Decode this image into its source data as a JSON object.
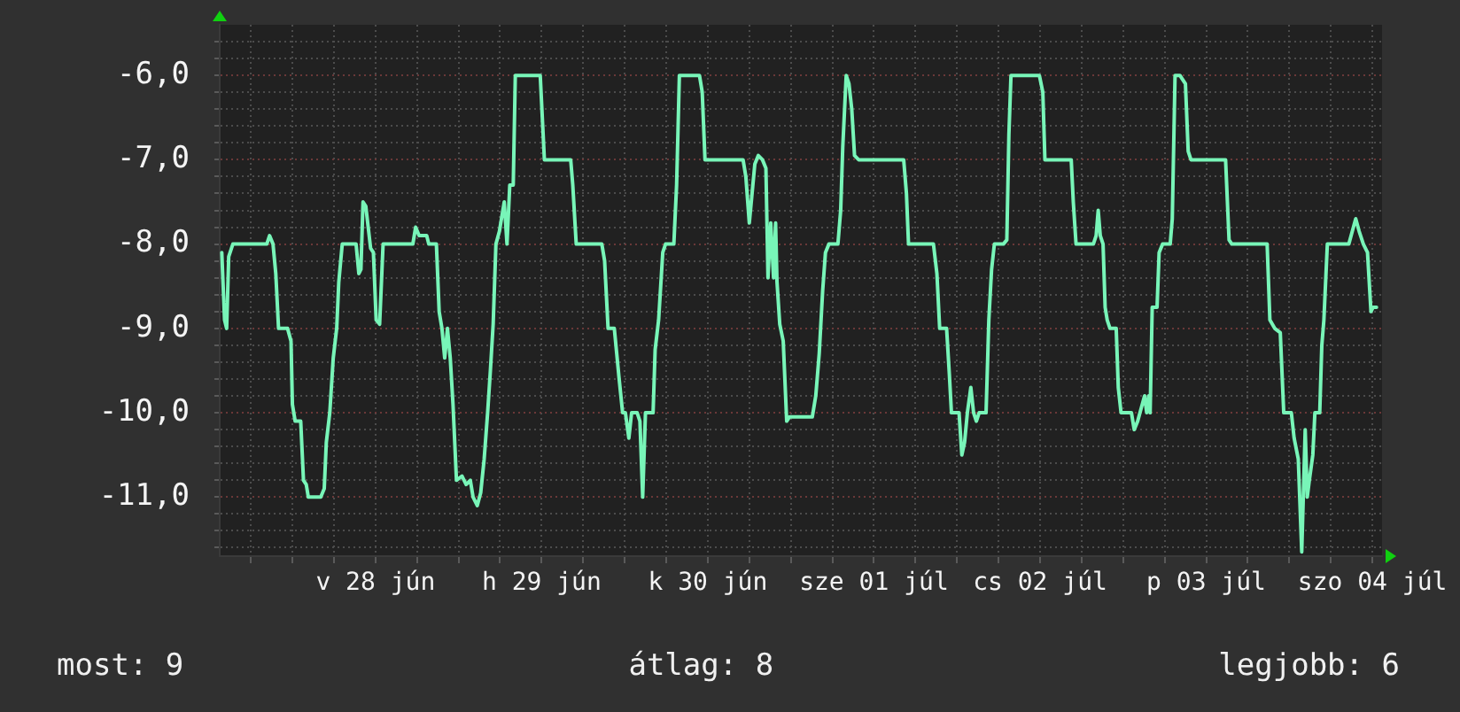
{
  "chart_data": {
    "type": "line",
    "color": "#78f5b8",
    "x": [
      "--06-27T13:48",
      "--06-27T14:12",
      "--06-27T14:30",
      "--06-27T14:48",
      "--06-27T15:24",
      "--06-27T20:18",
      "--06-27T20:42",
      "--06-27T21:12",
      "--06-27T21:36",
      "--06-27T22:00",
      "--06-27T23:18",
      "--06-27T23:48",
      "--06-28T00:00",
      "--06-28T00:24",
      "--06-28T01:12",
      "--06-28T01:36",
      "--06-28T02:00",
      "--06-28T02:18",
      "--06-28T04:06",
      "--06-28T04:36",
      "--06-28T04:54",
      "--06-28T05:24",
      "--06-28T05:54",
      "--06-28T06:24",
      "--06-28T06:42",
      "--06-28T07:12",
      "--06-28T09:12",
      "--06-28T09:36",
      "--06-28T09:54",
      "--06-28T10:12",
      "--06-28T10:36",
      "--06-28T11:18",
      "--06-28T11:42",
      "--06-28T12:06",
      "--06-28T12:36",
      "--06-28T13:06",
      "--06-28T17:24",
      "--06-28T17:48",
      "--06-28T18:18",
      "--06-28T19:24",
      "--06-28T19:42",
      "--06-28T20:48",
      "--06-28T21:12",
      "--06-28T21:36",
      "--06-28T22:00",
      "--06-28T22:24",
      "--06-28T22:48",
      "--06-28T23:12",
      "--06-28T23:42",
      "--06-29T00:30",
      "--06-29T01:06",
      "--06-29T01:42",
      "--06-29T02:06",
      "--06-29T02:42",
      "--06-29T03:12",
      "--06-29T03:42",
      "--06-29T04:12",
      "--06-29T04:36",
      "--06-29T05:00",
      "--06-29T05:24",
      "--06-29T05:54",
      "--06-29T06:36",
      "--06-29T07:00",
      "--06-29T07:24",
      "--06-29T07:54",
      "--06-29T08:12",
      "--06-29T11:48",
      "--06-29T12:06",
      "--06-29T12:24",
      "--06-29T16:12",
      "--06-29T16:30",
      "--06-29T17:00",
      "--06-29T20:42",
      "--06-29T21:06",
      "--06-29T21:36",
      "--06-29T22:30",
      "--06-29T23:12",
      "--06-29T23:42",
      "--06-30T00:06",
      "--06-30T00:36",
      "--06-30T01:00",
      "--06-30T01:48",
      "--06-30T02:12",
      "--06-30T02:36",
      "--06-30T03:00",
      "--06-30T04:06",
      "--06-30T04:24",
      "--06-30T04:54",
      "--06-30T05:30",
      "--06-30T05:54",
      "--06-30T07:06",
      "--06-30T07:30",
      "--06-30T07:54",
      "--06-30T10:48",
      "--06-30T11:12",
      "--06-30T11:36",
      "--06-30T17:06",
      "--06-30T17:30",
      "--06-30T18:00",
      "--06-30T18:24",
      "--06-30T18:48",
      "--06-30T19:18",
      "--06-30T19:54",
      "--06-30T20:24",
      "--06-30T20:42",
      "--06-30T21:06",
      "--06-30T21:30",
      "--06-30T21:48",
      "--06-30T22:00",
      "--06-30T22:24",
      "--06-30T22:54",
      "--06-30T23:24",
      "--06-30T23:48",
      "--07-01T03:06",
      "--07-01T03:36",
      "--07-01T04:06",
      "--07-01T04:36",
      "--07-01T05:00",
      "--07-01T05:30",
      "--07-01T06:48",
      "--07-01T07:12",
      "--07-01T07:30",
      "--07-01T08:00",
      "--07-01T08:24",
      "--07-01T08:48",
      "--07-01T09:12",
      "--07-01T09:48",
      "--07-01T16:18",
      "--07-01T16:42",
      "--07-01T17:00",
      "--07-01T20:36",
      "--07-01T21:06",
      "--07-01T21:30",
      "--07-01T22:30",
      "--07-01T22:54",
      "--07-01T23:12",
      "--07-02T00:18",
      "--07-02T00:42",
      "--07-02T01:06",
      "--07-02T01:30",
      "--07-02T02:00",
      "--07-02T02:24",
      "--07-02T02:48",
      "--07-02T03:12",
      "--07-02T04:12",
      "--07-02T04:36",
      "--07-02T05:00",
      "--07-02T05:24",
      "--07-02T06:42",
      "--07-02T07:12",
      "--07-02T07:30",
      "--07-02T07:48",
      "--07-02T11:54",
      "--07-02T12:24",
      "--07-02T12:42",
      "--07-02T16:30",
      "--07-02T16:48",
      "--07-02T17:12",
      "--07-02T19:42",
      "--07-02T20:06",
      "--07-02T20:24",
      "--07-02T20:42",
      "--07-02T21:06",
      "--07-02T21:24",
      "--07-02T21:42",
      "--07-02T22:06",
      "--07-02T23:00",
      "--07-02T23:18",
      "--07-02T23:42",
      "--07-03T01:12",
      "--07-03T01:36",
      "--07-03T02:06",
      "--07-03T02:36",
      "--07-03T03:06",
      "--07-03T03:24",
      "--07-03T03:42",
      "--07-03T03:54",
      "--07-03T04:12",
      "--07-03T04:54",
      "--07-03T05:12",
      "--07-03T05:42",
      "--07-03T06:48",
      "--07-03T07:06",
      "--07-03T07:30",
      "--07-03T08:12",
      "--07-03T08:36",
      "--07-03T09:00",
      "--07-03T09:24",
      "--07-03T09:48",
      "--07-03T14:48",
      "--07-03T15:18",
      "--07-03T15:42",
      "--07-03T20:48",
      "--07-03T21:12",
      "--07-03T21:54",
      "--07-03T22:42",
      "--07-03T23:12",
      "--07-04T00:18",
      "--07-04T00:42",
      "--07-04T01:18",
      "--07-04T01:48",
      "--07-04T02:18",
      "--07-04T02:36",
      "--07-04T02:54",
      "--07-04T03:24",
      "--07-04T03:42",
      "--07-04T04:24",
      "--07-04T04:42",
      "--07-04T05:00",
      "--07-04T05:30",
      "--07-04T08:36",
      "--07-04T09:06",
      "--07-04T09:36",
      "--07-04T10:06",
      "--07-04T10:42",
      "--07-04T11:18",
      "--07-04T11:48",
      "--07-04T12:06",
      "--07-04T12:36"
    ],
    "values": [
      -8.1,
      -8.9,
      -9.0,
      -8.15,
      -8.0,
      -8.0,
      -7.9,
      -8.0,
      -8.35,
      -9.0,
      -9.0,
      -9.15,
      -9.9,
      -10.1,
      -10.1,
      -10.8,
      -10.85,
      -11.0,
      -11.0,
      -10.9,
      -10.35,
      -10.0,
      -9.35,
      -9.0,
      -8.45,
      -8.0,
      -8.0,
      -8.35,
      -8.3,
      -7.5,
      -7.55,
      -8.05,
      -8.1,
      -8.9,
      -8.95,
      -8.0,
      -8.0,
      -7.8,
      -7.9,
      -7.9,
      -8.0,
      -8.0,
      -8.8,
      -9.0,
      -9.35,
      -9.0,
      -9.35,
      -9.9,
      -10.8,
      -10.75,
      -10.85,
      -10.8,
      -11.0,
      -11.1,
      -10.95,
      -10.55,
      -10.0,
      -9.5,
      -8.95,
      -8.0,
      -7.85,
      -7.5,
      -8.0,
      -7.3,
      -7.3,
      -6.0,
      -6.0,
      -6.5,
      -7.0,
      -7.0,
      -7.3,
      -8.0,
      -8.0,
      -8.2,
      -9.0,
      -9.0,
      -9.6,
      -10.0,
      -10.0,
      -10.3,
      -10.0,
      -10.0,
      -10.1,
      -11.0,
      -10.0,
      -10.0,
      -9.25,
      -8.9,
      -8.1,
      -8.0,
      -8.0,
      -7.3,
      -6.0,
      -6.0,
      -6.2,
      -7.0,
      -7.0,
      -7.2,
      -7.75,
      -7.4,
      -7.05,
      -6.95,
      -7.0,
      -7.1,
      -8.4,
      -7.75,
      -8.4,
      -7.75,
      -8.45,
      -8.95,
      -9.15,
      -10.1,
      -10.05,
      -10.05,
      -9.8,
      -9.3,
      -8.55,
      -8.1,
      -8.0,
      -8.0,
      -7.6,
      -6.85,
      -6.0,
      -6.1,
      -6.4,
      -6.95,
      -7.0,
      -7.0,
      -7.4,
      -8.0,
      -8.0,
      -8.35,
      -9.0,
      -9.0,
      -9.55,
      -10.0,
      -10.0,
      -10.5,
      -10.35,
      -10.0,
      -9.7,
      -10.0,
      -10.1,
      -10.0,
      -10.0,
      -8.9,
      -8.3,
      -8.0,
      -8.0,
      -7.95,
      -6.7,
      -6.0,
      -6.0,
      -6.2,
      -7.0,
      -7.0,
      -7.5,
      -8.0,
      -8.0,
      -7.9,
      -7.6,
      -7.9,
      -8.0,
      -8.75,
      -8.9,
      -9.0,
      -9.0,
      -9.7,
      -10.0,
      -10.0,
      -10.2,
      -10.1,
      -9.95,
      -9.8,
      -10.0,
      -9.8,
      -10.0,
      -8.75,
      -8.75,
      -8.1,
      -8.0,
      -8.0,
      -7.7,
      -6.0,
      -6.0,
      -6.05,
      -6.1,
      -6.9,
      -7.0,
      -7.0,
      -7.95,
      -8.0,
      -8.0,
      -8.9,
      -9.0,
      -9.05,
      -10.0,
      -10.0,
      -10.3,
      -10.55,
      -11.65,
      -10.2,
      -11.0,
      -10.8,
      -10.5,
      -10.0,
      -10.0,
      -9.2,
      -8.9,
      -8.0,
      -8.0,
      -7.85,
      -7.7,
      -7.85,
      -8.0,
      -8.1,
      -8.8,
      -8.75,
      -8.75
    ],
    "xlim": [
      "--06-27T13:30",
      "--07-04T13:24"
    ],
    "xticks": [
      {
        "value": "--06-27T18:00",
        "label": null
      },
      {
        "value": "--06-28T00:00",
        "label": null
      },
      {
        "value": "--06-28T06:00",
        "label": null
      },
      {
        "value": "--06-28T12:00",
        "label": "v 28 jún"
      },
      {
        "value": "--06-28T18:00",
        "label": null
      },
      {
        "value": "--06-29T00:00",
        "label": null
      },
      {
        "value": "--06-29T06:00",
        "label": null
      },
      {
        "value": "--06-29T12:00",
        "label": "h 29 jún"
      },
      {
        "value": "--06-29T18:00",
        "label": null
      },
      {
        "value": "--06-30T00:00",
        "label": null
      },
      {
        "value": "--06-30T06:00",
        "label": null
      },
      {
        "value": "--06-30T12:00",
        "label": "k 30 jún"
      },
      {
        "value": "--06-30T18:00",
        "label": null
      },
      {
        "value": "--07-01T00:00",
        "label": null
      },
      {
        "value": "--07-01T06:00",
        "label": null
      },
      {
        "value": "--07-01T12:00",
        "label": "sze 01 júl"
      },
      {
        "value": "--07-01T18:00",
        "label": null
      },
      {
        "value": "--07-02T00:00",
        "label": null
      },
      {
        "value": "--07-02T06:00",
        "label": null
      },
      {
        "value": "--07-02T12:00",
        "label": "cs 02 júl"
      },
      {
        "value": "--07-02T18:00",
        "label": null
      },
      {
        "value": "--07-03T00:00",
        "label": null
      },
      {
        "value": "--07-03T06:00",
        "label": null
      },
      {
        "value": "--07-03T12:00",
        "label": "p 03 júl"
      },
      {
        "value": "--07-03T18:00",
        "label": null
      },
      {
        "value": "--07-04T00:00",
        "label": null
      },
      {
        "value": "--07-04T06:00",
        "label": null
      },
      {
        "value": "--07-04T12:00",
        "label": "szo 04 júl"
      }
    ],
    "ylim": [
      -11.7,
      -5.4
    ],
    "yticks": [
      {
        "value": -11.6,
        "label": null
      },
      {
        "value": -11.4,
        "label": null
      },
      {
        "value": -11.2,
        "label": null
      },
      {
        "value": -11,
        "label": "-11,0"
      },
      {
        "value": -10.8,
        "label": null
      },
      {
        "value": -10.6,
        "label": null
      },
      {
        "value": -10.4,
        "label": null
      },
      {
        "value": -10.2,
        "label": null
      },
      {
        "value": -10,
        "label": "-10,0"
      },
      {
        "value": -9.8,
        "label": null
      },
      {
        "value": -9.6,
        "label": null
      },
      {
        "value": -9.4,
        "label": null
      },
      {
        "value": -9.2,
        "label": null
      },
      {
        "value": -9,
        "label": "-9,0"
      },
      {
        "value": -8.8,
        "label": null
      },
      {
        "value": -8.6,
        "label": null
      },
      {
        "value": -8.4,
        "label": null
      },
      {
        "value": -8.2,
        "label": null
      },
      {
        "value": -8,
        "label": "-8,0"
      },
      {
        "value": -7.8,
        "label": null
      },
      {
        "value": -7.6,
        "label": null
      },
      {
        "value": -7.4,
        "label": null
      },
      {
        "value": -7.2,
        "label": null
      },
      {
        "value": -7,
        "label": "-7,0"
      },
      {
        "value": -6.8,
        "label": null
      },
      {
        "value": -6.6,
        "label": null
      },
      {
        "value": -6.4,
        "label": null
      },
      {
        "value": -6.2,
        "label": null
      },
      {
        "value": -6,
        "label": "-6,0"
      },
      {
        "value": -5.8,
        "label": null
      },
      {
        "value": -5.6,
        "label": null
      }
    ],
    "grid": true,
    "annotations": [
      "most: 9",
      "átlag: 8",
      "legjobb: 6"
    ]
  }
}
